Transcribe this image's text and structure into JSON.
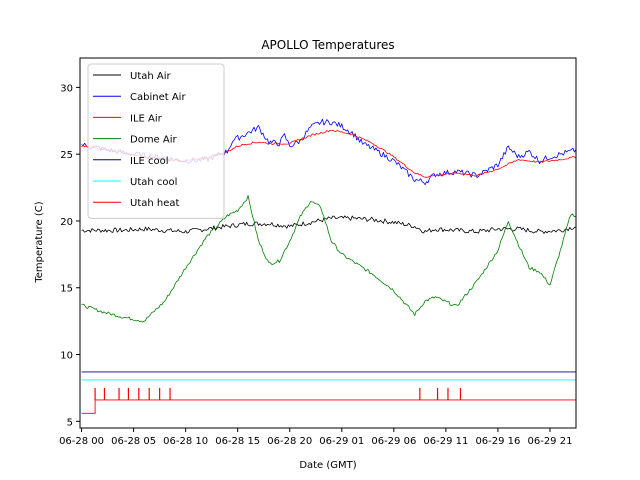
{
  "chart_data": {
    "type": "line",
    "title": "APOLLO Temperatures",
    "xlabel": "Date (GMT)",
    "ylabel": "Temperature (C)",
    "xlim": [
      -0.15,
      47.5
    ],
    "ylim": [
      4.5,
      32.2
    ],
    "x_ticks": [
      {
        "x": 0,
        "label": "06-28 00"
      },
      {
        "x": 5,
        "label": "06-28 05"
      },
      {
        "x": 10,
        "label": "06-28 10"
      },
      {
        "x": 15,
        "label": "06-28 15"
      },
      {
        "x": 20,
        "label": "06-28 20"
      },
      {
        "x": 25,
        "label": "06-29 01"
      },
      {
        "x": 30,
        "label": "06-29 06"
      },
      {
        "x": 35,
        "label": "06-29 11"
      },
      {
        "x": 40,
        "label": "06-29 16"
      },
      {
        "x": 45,
        "label": "06-29 21"
      }
    ],
    "y_ticks": [
      5,
      10,
      15,
      20,
      25,
      30
    ],
    "legend_position": "top-left",
    "series": [
      {
        "name": "Utah Air",
        "color": "#000000",
        "x": [
          0,
          2,
          4,
          6,
          8,
          10,
          12,
          14,
          16,
          18,
          20,
          22,
          24,
          26,
          28,
          30,
          32,
          33,
          34,
          36,
          38,
          40,
          42,
          44,
          46,
          47.5
        ],
        "y": [
          19.3,
          19.3,
          19.3,
          19.4,
          19.3,
          19.2,
          19.4,
          19.6,
          19.8,
          19.8,
          19.6,
          19.9,
          20.2,
          20.2,
          20.1,
          19.9,
          19.6,
          19.2,
          19.4,
          19.3,
          19.2,
          19.4,
          19.4,
          19.2,
          19.3,
          19.6
        ]
      },
      {
        "name": "Cabinet Air",
        "color": "#0000ff",
        "x": [
          0,
          2,
          4,
          6,
          8,
          10,
          12,
          14,
          14.5,
          15,
          16,
          17,
          18,
          19,
          19.5,
          20,
          21,
          22,
          23,
          24,
          25,
          26,
          27,
          28,
          30,
          32,
          33,
          34,
          35,
          36,
          38,
          40,
          41,
          42,
          43,
          44,
          45,
          46,
          47.5
        ],
        "y": [
          25.7,
          25.4,
          25.1,
          24.9,
          24.7,
          24.5,
          24.6,
          25.2,
          26.0,
          26.2,
          26.6,
          27.0,
          25.9,
          25.8,
          26.4,
          25.6,
          26.0,
          27.0,
          27.4,
          27.4,
          27.1,
          26.6,
          25.8,
          25.4,
          24.5,
          23.1,
          22.9,
          23.5,
          23.6,
          23.7,
          23.4,
          24.2,
          25.5,
          24.8,
          25.2,
          24.5,
          24.8,
          25.0,
          25.3
        ]
      },
      {
        "name": "ILE Air",
        "color": "#ff0000",
        "x": [
          0,
          2,
          4,
          6,
          8,
          10,
          12,
          14,
          15,
          16,
          17,
          18,
          19,
          20,
          22,
          24,
          26,
          28,
          30,
          32,
          33,
          34,
          36,
          38,
          40,
          42,
          44,
          46,
          47.5
        ],
        "y": [
          25.6,
          25.4,
          25.1,
          24.8,
          24.6,
          24.5,
          24.7,
          25.2,
          25.6,
          25.8,
          25.9,
          25.8,
          25.8,
          25.8,
          26.4,
          26.8,
          26.5,
          25.8,
          24.8,
          23.6,
          23.3,
          23.4,
          23.6,
          23.4,
          23.9,
          24.6,
          24.4,
          24.6,
          24.8
        ]
      },
      {
        "name": "Dome Air",
        "color": "#008000",
        "x": [
          0,
          2,
          4,
          6,
          8,
          10,
          12,
          14,
          15,
          16,
          17,
          18,
          19,
          20,
          21,
          22,
          23,
          24,
          25,
          26,
          28,
          30,
          32,
          33,
          34,
          36,
          38,
          40,
          41,
          42,
          43,
          44,
          45,
          46,
          47,
          47.5
        ],
        "y": [
          13.7,
          13.2,
          12.8,
          12.5,
          14.0,
          16.5,
          18.8,
          20.4,
          20.8,
          21.8,
          18.5,
          16.8,
          17.0,
          18.5,
          20.3,
          21.5,
          21.0,
          18.5,
          17.5,
          17.0,
          16.0,
          14.8,
          13.0,
          14.0,
          14.3,
          13.6,
          15.5,
          17.8,
          20.0,
          18.2,
          16.5,
          16.2,
          15.2,
          17.8,
          20.5,
          20.4
        ]
      },
      {
        "name": "ILE cool",
        "color": "#00008b",
        "x": [
          0,
          47.5
        ],
        "y": [
          8.7,
          8.7
        ]
      },
      {
        "name": "Utah cool",
        "color": "#00ffff",
        "x": [
          0,
          47.5
        ],
        "y": [
          8.1,
          8.1
        ]
      },
      {
        "name": "Utah heat",
        "color": "#ff0000",
        "x": [
          0,
          1.3,
          1.3,
          47.5
        ],
        "y": [
          5.6,
          5.6,
          6.6,
          6.6
        ],
        "spikes": [
          1.3,
          2.2,
          3.6,
          4.5,
          5.5,
          6.5,
          7.5,
          8.5,
          32.5,
          34.2,
          35.2,
          36.4
        ],
        "spike_top": 7.5
      }
    ]
  }
}
